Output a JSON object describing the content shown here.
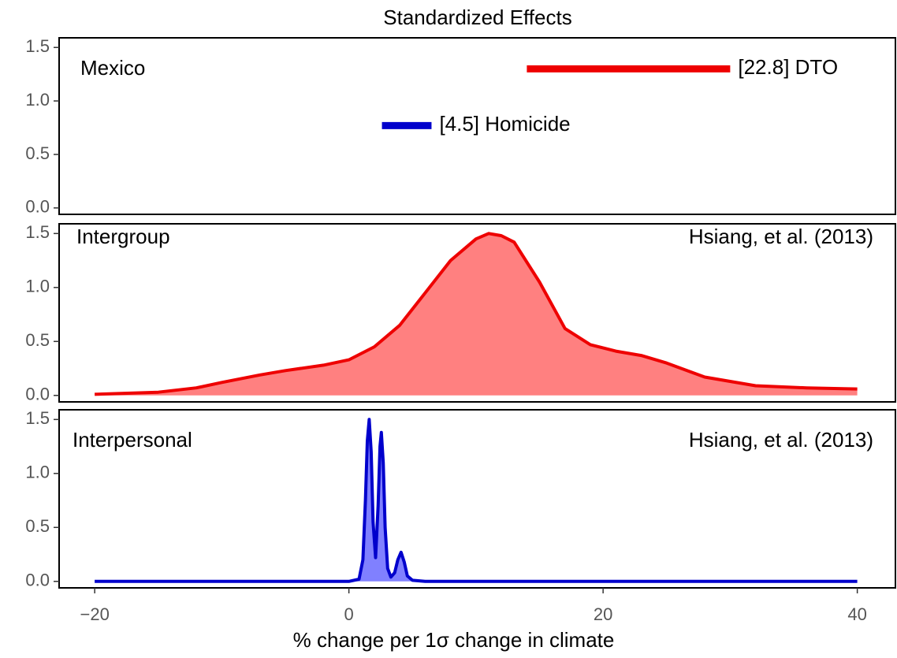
{
  "chart_data": [
    {
      "type": "segment",
      "title": "Standardized Effects",
      "label": "Mexico",
      "xlim": [
        -22.8,
        43
      ],
      "ylim": [
        -0.06,
        1.59
      ],
      "yticks": [
        {
          "value": 0,
          "label": "0.0"
        },
        0.5,
        {
          "value": 1,
          "label": "1.0"
        },
        1.5
      ],
      "series": [
        {
          "name": "[22.8] DTO",
          "color": "#ee0000",
          "x": [
            14,
            30
          ],
          "y": 1.3
        },
        {
          "name": "[4.5] Homicide",
          "color": "#0000cc",
          "x": [
            2.6,
            6.5
          ],
          "y": 0.77
        }
      ]
    },
    {
      "type": "area",
      "label": "Intergroup",
      "annotation": "Hsiang, et al. (2013)",
      "color": "#ee0000",
      "fill_color": "#ff8080",
      "xlim": [
        -22.8,
        43
      ],
      "ylim": [
        -0.06,
        1.59
      ],
      "yticks": [
        {
          "value": 0,
          "label": "0.0"
        },
        0.5,
        {
          "value": 1,
          "label": "1.0"
        },
        1.5
      ],
      "x": [
        -20,
        -15,
        -12,
        -10,
        -7,
        -5,
        -2,
        0,
        2,
        4,
        6,
        8,
        10,
        11,
        12,
        13,
        15,
        17,
        19,
        21,
        23,
        25,
        28,
        32,
        36,
        40
      ],
      "values": [
        0.01,
        0.03,
        0.07,
        0.12,
        0.19,
        0.23,
        0.28,
        0.33,
        0.45,
        0.65,
        0.95,
        1.25,
        1.45,
        1.5,
        1.48,
        1.42,
        1.05,
        0.62,
        0.47,
        0.41,
        0.37,
        0.3,
        0.17,
        0.09,
        0.07,
        0.06
      ]
    },
    {
      "type": "area",
      "label": "Interpersonal",
      "annotation": "Hsiang, et al. (2013)",
      "color": "#0000cc",
      "fill_color": "#8080ff",
      "xlim": [
        -22.8,
        43
      ],
      "ylim": [
        -0.06,
        1.59
      ],
      "yticks": [
        {
          "value": 0,
          "label": "0.0"
        },
        0.5,
        {
          "value": 1,
          "label": "1.0"
        },
        1.5
      ],
      "xlabel": "% change per 1σ change in climate",
      "xticks": [
        {
          "value": -20,
          "label": "−20"
        },
        0,
        20,
        40
      ],
      "x": [
        -20,
        0,
        0.8,
        1.1,
        1.3,
        1.45,
        1.6,
        1.75,
        1.9,
        2.1,
        2.3,
        2.45,
        2.55,
        2.7,
        2.85,
        3.05,
        3.3,
        3.6,
        3.85,
        4.1,
        4.35,
        4.6,
        5,
        6,
        40
      ],
      "values": [
        0,
        0,
        0.02,
        0.2,
        0.75,
        1.3,
        1.5,
        1.2,
        0.55,
        0.22,
        0.7,
        1.25,
        1.38,
        1.1,
        0.5,
        0.12,
        0.04,
        0.08,
        0.2,
        0.27,
        0.18,
        0.05,
        0.01,
        0,
        0
      ]
    }
  ]
}
